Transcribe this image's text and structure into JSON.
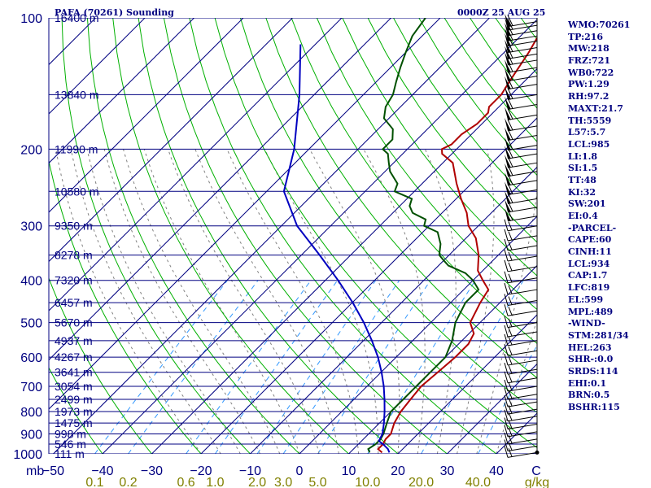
{
  "header": {
    "station": "PAFA (70261) Sounding",
    "datetime": "0000Z 25 AUG 25"
  },
  "parameters": [
    "WMO:70261",
    "TP:216",
    "MW:218",
    "FRZ:721",
    "WB0:722",
    "PW:1.29",
    "RH:97.2",
    "MAXT:21.7",
    "TH:5559",
    "L57:5.7",
    "LCL:985",
    "LI:1.8",
    "SI:1.5",
    "TT:48",
    "KI:32",
    "SW:201",
    "EI:0.4",
    "-PARCEL-",
    "CAPE:60",
    "CINH:11",
    "LCL:934",
    "CAP:1.7",
    "LFC:819",
    "EL:599",
    "MPL:489",
    "-WIND-",
    "STM:281/34",
    "HEL:263",
    "SHR-:0.0",
    "SRDS:114",
    "EHI:0.1",
    "BRN:0.5",
    "BSHR:115"
  ],
  "colors": {
    "isobar": "#000080",
    "isotherm": "#000080",
    "dry_adiabat": "#00b000",
    "moist_adiabat": "#808080",
    "mixing_ratio": "#3399ff",
    "temperature": "#b00000",
    "dewpoint": "#005000",
    "parcel": "#0000c0",
    "mixing_ratio_label": "#808000",
    "wind_barb": "#000000"
  },
  "chart_data": {
    "type": "skew-t",
    "x_axis_unit": "C",
    "y_axis_unit": "mb",
    "pressure_ticks": [
      100,
      200,
      300,
      400,
      500,
      600,
      700,
      800,
      900,
      1000
    ],
    "temperature_ticks": [
      -50,
      -40,
      -30,
      -20,
      -10,
      0,
      10,
      20,
      30,
      40
    ],
    "mixing_ratio_unit": "g/kg",
    "mixing_ratio_ticks": [
      "0.1",
      "0.2",
      "0.6",
      "1.0",
      "2.0",
      "3.0",
      "5.0",
      "10.0",
      "20.0",
      "40.0"
    ],
    "height_labels": [
      {
        "p": 100,
        "label": "16400 m"
      },
      {
        "p": 150,
        "label": "13840 m"
      },
      {
        "p": 200,
        "label": "11990 m"
      },
      {
        "p": 250,
        "label": "10580 m"
      },
      {
        "p": 300,
        "label": "9350 m"
      },
      {
        "p": 350,
        "label": "8278 m"
      },
      {
        "p": 400,
        "label": "7320 m"
      },
      {
        "p": 450,
        "label": "6457 m"
      },
      {
        "p": 500,
        "label": "5670 m"
      },
      {
        "p": 550,
        "label": "4937 m"
      },
      {
        "p": 600,
        "label": "4267 m"
      },
      {
        "p": 650,
        "label": "3641 m"
      },
      {
        "p": 700,
        "label": "3054 m"
      },
      {
        "p": 750,
        "label": "2499 m"
      },
      {
        "p": 800,
        "label": "1973 m"
      },
      {
        "p": 850,
        "label": "1475 m"
      },
      {
        "p": 900,
        "label": "998 m"
      },
      {
        "p": 950,
        "label": "546 m"
      },
      {
        "p": 1000,
        "label": "111 m"
      }
    ],
    "series": [
      {
        "key": "temperature",
        "points": [
          [
            993,
            16.5
          ],
          [
            975,
            15
          ],
          [
            950,
            15
          ],
          [
            925,
            14.5
          ],
          [
            900,
            14.5
          ],
          [
            850,
            13
          ],
          [
            800,
            12
          ],
          [
            750,
            11.5
          ],
          [
            700,
            11
          ],
          [
            650,
            11.5
          ],
          [
            600,
            12
          ],
          [
            560,
            12
          ],
          [
            530,
            11
          ],
          [
            500,
            8
          ],
          [
            450,
            6
          ],
          [
            420,
            5
          ],
          [
            400,
            2
          ],
          [
            380,
            -1
          ],
          [
            350,
            -4
          ],
          [
            320,
            -8
          ],
          [
            300,
            -12
          ],
          [
            280,
            -15
          ],
          [
            260,
            -19
          ],
          [
            240,
            -23
          ],
          [
            215,
            -28
          ],
          [
            205,
            -32
          ],
          [
            200,
            -33
          ],
          [
            195,
            -32
          ],
          [
            185,
            -32
          ],
          [
            175,
            -31
          ],
          [
            165,
            -31
          ],
          [
            160,
            -32
          ],
          [
            150,
            -32
          ],
          [
            140,
            -33
          ],
          [
            120,
            -35
          ],
          [
            100,
            -38
          ]
        ]
      },
      {
        "key": "dewpoint",
        "points": [
          [
            993,
            14
          ],
          [
            975,
            13
          ],
          [
            950,
            13.5
          ],
          [
            925,
            13.5
          ],
          [
            900,
            13
          ],
          [
            850,
            11.5
          ],
          [
            800,
            10
          ],
          [
            750,
            10
          ],
          [
            700,
            10
          ],
          [
            650,
            10
          ],
          [
            600,
            10
          ],
          [
            550,
            8
          ],
          [
            500,
            5
          ],
          [
            450,
            3
          ],
          [
            420,
            3
          ],
          [
            400,
            0
          ],
          [
            385,
            -3
          ],
          [
            370,
            -8
          ],
          [
            360,
            -10
          ],
          [
            350,
            -12
          ],
          [
            330,
            -14
          ],
          [
            310,
            -17
          ],
          [
            300,
            -21
          ],
          [
            290,
            -22
          ],
          [
            280,
            -26
          ],
          [
            270,
            -28
          ],
          [
            260,
            -29
          ],
          [
            250,
            -34
          ],
          [
            240,
            -35
          ],
          [
            225,
            -39
          ],
          [
            215,
            -41
          ],
          [
            205,
            -43
          ],
          [
            200,
            -45
          ],
          [
            190,
            -45
          ],
          [
            180,
            -47
          ],
          [
            170,
            -51
          ],
          [
            160,
            -53
          ],
          [
            150,
            -54
          ],
          [
            140,
            -56
          ],
          [
            130,
            -58
          ],
          [
            120,
            -60
          ],
          [
            110,
            -62
          ],
          [
            100,
            -63
          ]
        ]
      },
      {
        "key": "parcel",
        "points": [
          [
            993,
            18
          ],
          [
            975,
            17
          ],
          [
            950,
            15
          ],
          [
            934,
            13.5
          ],
          [
            900,
            12.8
          ],
          [
            850,
            10.9
          ],
          [
            800,
            8.7
          ],
          [
            750,
            6.2
          ],
          [
            700,
            3.4
          ],
          [
            650,
            0.1
          ],
          [
            600,
            -3.7
          ],
          [
            550,
            -8.3
          ],
          [
            500,
            -13.6
          ],
          [
            450,
            -19.9
          ],
          [
            400,
            -27.4
          ],
          [
            350,
            -36.3
          ],
          [
            300,
            -46.8
          ],
          [
            250,
            -56.5
          ],
          [
            200,
            -63
          ],
          [
            150,
            -73
          ],
          [
            115,
            -83
          ]
        ]
      }
    ],
    "wind_levels_mb": [
      102,
      104,
      107,
      110,
      113,
      117,
      121,
      125,
      130,
      136,
      142,
      150,
      158,
      167,
      177,
      186,
      196,
      205,
      215,
      225,
      236,
      248,
      260,
      272,
      285,
      300,
      316,
      333,
      352,
      372,
      395,
      420,
      445,
      470,
      500,
      525,
      550,
      580,
      610,
      640,
      670,
      700,
      730,
      760,
      790,
      820,
      855,
      890,
      925,
      960,
      993
    ],
    "wind_barb_pattern": "dense west-northwest barbs with pennants aloft, lighter near surface"
  }
}
